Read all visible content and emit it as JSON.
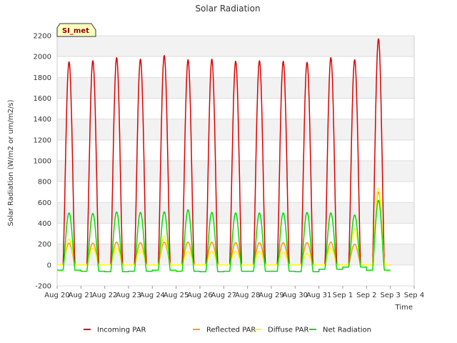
{
  "chart_data": {
    "type": "line",
    "title": "Solar Radiation",
    "xlabel": "Time",
    "ylabel": "Solar Radiation (W/m2 or um/m2/s)",
    "annotation": "SI_met",
    "ylim": [
      -200,
      2200
    ],
    "yticks": [
      -200,
      0,
      200,
      400,
      600,
      800,
      1000,
      1200,
      1400,
      1600,
      1800,
      2000,
      2200
    ],
    "xlim": [
      0,
      15
    ],
    "xtick_labels": [
      "Aug 20",
      "Aug 21",
      "Aug 22",
      "Aug 23",
      "Aug 24",
      "Aug 25",
      "Aug 26",
      "Aug 27",
      "Aug 28",
      "Aug 29",
      "Aug 30",
      "Aug 31",
      "Sep 1",
      "Sep 2",
      "Sep 3",
      "Sep 4"
    ],
    "days": [
      "Aug 20",
      "Aug 21",
      "Aug 22",
      "Aug 23",
      "Aug 24",
      "Aug 25",
      "Aug 26",
      "Aug 27",
      "Aug 28",
      "Aug 29",
      "Aug 30",
      "Aug 31",
      "Sep 1",
      "Sep 2"
    ],
    "series": [
      {
        "name": "Incoming PAR",
        "color": "#dd0000",
        "daily_peak": [
          1950,
          1960,
          1990,
          1975,
          2010,
          1970,
          1975,
          1955,
          1960,
          1955,
          1945,
          1990,
          1970,
          2170
        ],
        "night": [
          0,
          0,
          0,
          0,
          0,
          0,
          0,
          0,
          0,
          0,
          0,
          0,
          0,
          0
        ]
      },
      {
        "name": "Reflected PAR",
        "color": "#ff9900",
        "daily_peak": [
          210,
          210,
          220,
          215,
          220,
          220,
          220,
          215,
          215,
          215,
          215,
          220,
          200,
          700
        ],
        "night": [
          0,
          0,
          0,
          0,
          0,
          0,
          0,
          0,
          0,
          0,
          0,
          0,
          0,
          0
        ]
      },
      {
        "name": "Diffuse PAR",
        "color": "#ffff00",
        "daily_peak": [
          250,
          160,
          160,
          150,
          280,
          130,
          130,
          130,
          130,
          120,
          110,
          160,
          350,
          740
        ],
        "night": [
          0,
          0,
          0,
          0,
          0,
          0,
          0,
          0,
          0,
          0,
          0,
          0,
          0,
          0
        ]
      },
      {
        "name": "Net Radiation",
        "color": "#00dd00",
        "daily_peak": [
          500,
          495,
          510,
          505,
          510,
          530,
          505,
          500,
          500,
          500,
          505,
          500,
          480,
          620
        ],
        "night": [
          -50,
          -60,
          -65,
          -60,
          -50,
          -60,
          -65,
          -60,
          -60,
          -60,
          -65,
          -40,
          -20,
          -50
        ]
      }
    ]
  }
}
